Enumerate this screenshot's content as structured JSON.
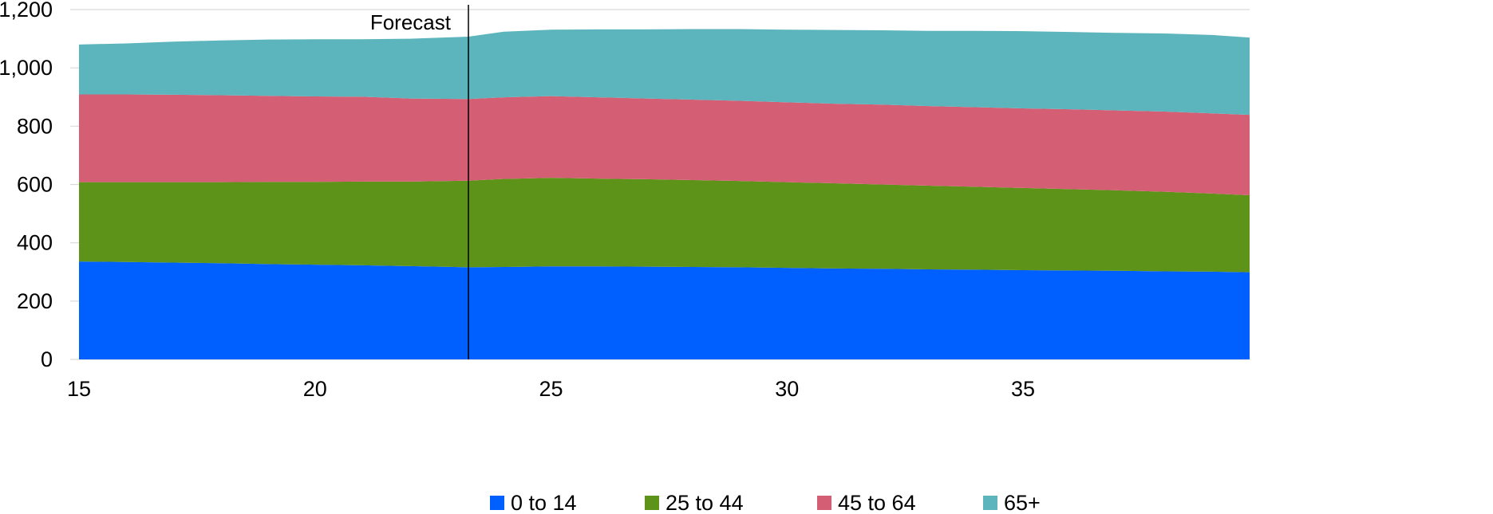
{
  "chart_data": {
    "type": "area",
    "stacked": true,
    "title": "",
    "xlabel": "",
    "ylabel": "",
    "xlim": [
      15,
      39.8
    ],
    "ylim": [
      0,
      1200
    ],
    "x_ticks": [
      15,
      20,
      25,
      30,
      35
    ],
    "x_tick_labels": [
      "15",
      "20",
      "25",
      "30",
      "35"
    ],
    "y_ticks": [
      0,
      200,
      400,
      600,
      800,
      1000,
      1200
    ],
    "y_tick_labels": [
      "0",
      "200",
      "400",
      "600",
      "800",
      "1,000",
      "1,200"
    ],
    "grid": true,
    "grid_axis": "y",
    "legend_position": "bottom",
    "x": [
      15,
      16,
      17,
      18,
      19,
      20,
      21,
      22,
      23.25,
      24,
      25,
      26,
      27,
      28,
      29,
      30,
      31,
      32,
      33,
      34,
      35,
      36,
      37,
      38,
      39,
      39.8
    ],
    "series": [
      {
        "name": "0 to 14",
        "color": "#0060FF",
        "values": [
          336,
          334,
          332,
          330,
          327,
          325,
          323,
          320,
          316,
          317,
          319,
          319,
          318,
          317,
          316,
          314,
          312,
          311,
          309,
          308,
          306,
          305,
          304,
          302,
          301,
          299
        ]
      },
      {
        "name": "25 to 44",
        "color": "#5E9319",
        "values": [
          272,
          274,
          276,
          278,
          282,
          284,
          287,
          290,
          297,
          302,
          304,
          301,
          300,
          298,
          296,
          294,
          292,
          289,
          287,
          284,
          282,
          279,
          276,
          273,
          268,
          264
        ]
      },
      {
        "name": "45 to 64",
        "color": "#D45F75",
        "values": [
          301,
          301,
          300,
          298,
          295,
          293,
          291,
          285,
          280,
          280,
          280,
          279,
          277,
          276,
          275,
          274,
          273,
          274,
          273,
          273,
          273,
          274,
          274,
          275,
          275,
          276
        ]
      },
      {
        "name": "65+",
        "color": "#5CB5BC",
        "values": [
          171,
          175,
          182,
          188,
          193,
          196,
          197,
          205,
          214,
          225,
          228,
          233,
          237,
          242,
          246,
          249,
          253,
          255,
          258,
          262,
          265,
          265,
          266,
          268,
          269,
          265
        ]
      }
    ],
    "annotations": [
      {
        "type": "vline",
        "x": 23.25,
        "label": "Forecast"
      }
    ]
  }
}
